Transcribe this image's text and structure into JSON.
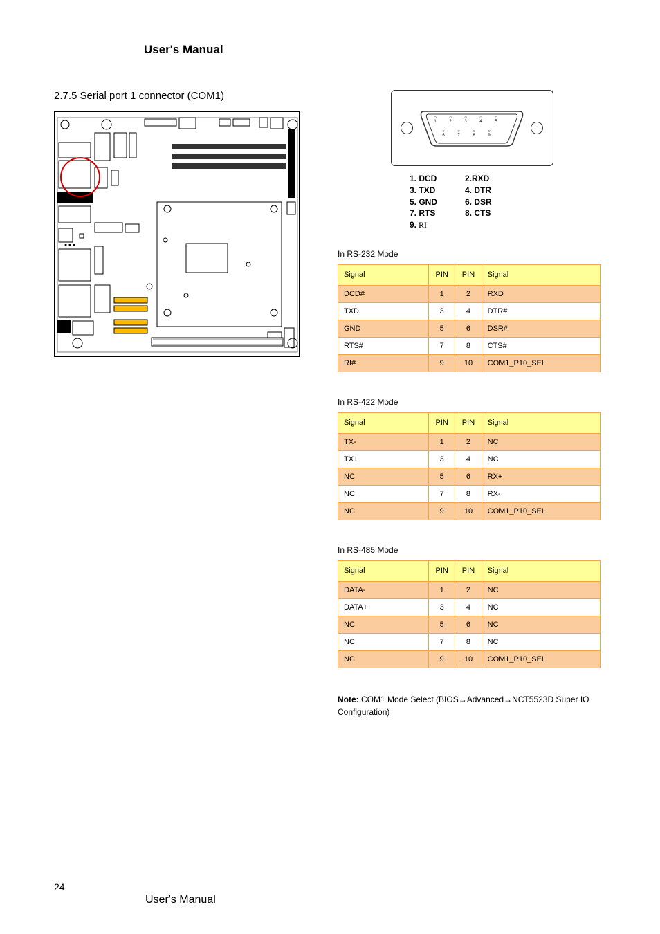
{
  "header": "User's Manual",
  "section_title": "2.7.5 Serial port 1 connector (COM1)",
  "connector": {
    "top_pins": [
      "1",
      "2",
      "3",
      "4",
      "5"
    ],
    "bot_pins": [
      "6",
      "7",
      "8",
      "9"
    ]
  },
  "pin_defs": {
    "r1": [
      "1. DCD",
      "2.RXD"
    ],
    "r2": [
      "3. TXD",
      "4. DTR"
    ],
    "r3": [
      "5. GND",
      "6. DSR"
    ],
    "r4": [
      "7. RTS",
      "8. CTS"
    ],
    "r5_label": "9.",
    "r5_val": " RI"
  },
  "tables": [
    {
      "title": "In RS-232 Mode",
      "header": [
        "Signal",
        "PIN",
        "PIN",
        "Signal"
      ],
      "rows": [
        [
          "DCD#",
          "1",
          "2",
          "RXD"
        ],
        [
          "TXD",
          "3",
          "4",
          "DTR#"
        ],
        [
          "GND",
          "5",
          "6",
          "DSR#"
        ],
        [
          "RTS#",
          "7",
          "8",
          "CTS#"
        ],
        [
          "RI#",
          "9",
          "10",
          "COM1_P10_SEL"
        ]
      ]
    },
    {
      "title": "In RS-422 Mode",
      "header": [
        "Signal",
        "PIN",
        "PIN",
        "Signal"
      ],
      "rows": [
        [
          "TX-",
          "1",
          "2",
          "NC"
        ],
        [
          "TX+",
          "3",
          "4",
          "NC"
        ],
        [
          "NC",
          "5",
          "6",
          "RX+"
        ],
        [
          "NC",
          "7",
          "8",
          "RX-"
        ],
        [
          "NC",
          "9",
          "10",
          "COM1_P10_SEL"
        ]
      ]
    },
    {
      "title": "In RS-485 Mode",
      "header": [
        "Signal",
        "PIN",
        "PIN",
        "Signal"
      ],
      "rows": [
        [
          "DATA-",
          "1",
          "2",
          "NC"
        ],
        [
          "DATA+",
          "3",
          "4",
          "NC"
        ],
        [
          "NC",
          "5",
          "6",
          "NC"
        ],
        [
          "NC",
          "7",
          "8",
          "NC"
        ],
        [
          "NC",
          "9",
          "10",
          "COM1_P10_SEL"
        ]
      ]
    }
  ],
  "note_prefix": "Note: ",
  "note_body_1": "COM1 Mode Select ",
  "note_body_2": "BIOS",
  "note_body_3": "Advanced",
  "note_body_4": "NCT5523D Super IO Configuration",
  "arrow": "→",
  "footer_pagenum": "24",
  "footer_text": "User's Manual",
  "colors": {
    "orange_border": "#f7a243",
    "header_bg": "#ffff99",
    "row_alt_bg": "#fbcd9e",
    "red_circle": "#d40000"
  }
}
